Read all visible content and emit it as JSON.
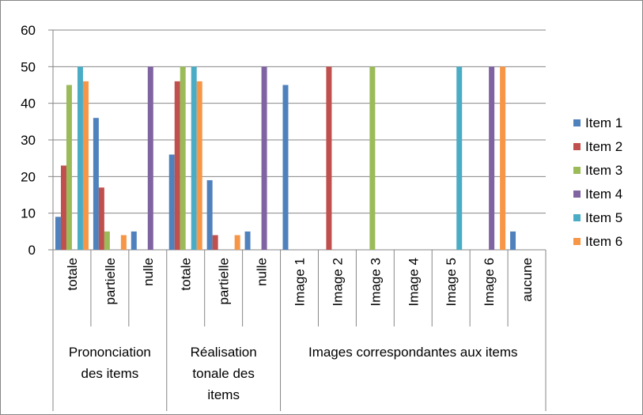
{
  "chart_data": {
    "type": "bar",
    "categories": [
      "totale",
      "partielle",
      "nulle",
      "totale",
      "partielle",
      "nulle",
      "Image 1",
      "Image 2",
      "Image 3",
      "Image 4",
      "Image 5",
      "Image 6",
      "aucune"
    ],
    "groups": [
      {
        "lines": [
          "Prononciation",
          "des items"
        ],
        "span": 3
      },
      {
        "lines": [
          "Réalisation",
          "tonale des",
          "items"
        ],
        "span": 3
      },
      {
        "lines": [
          "Images correspondantes aux items"
        ],
        "span": 7
      }
    ],
    "series": [
      {
        "name": "Item 1",
        "color": "#4F81BD",
        "values": [
          9,
          36,
          5,
          26,
          19,
          5,
          45,
          0,
          0,
          0,
          0,
          0,
          5
        ]
      },
      {
        "name": "Item 2",
        "color": "#C0504D",
        "values": [
          23,
          17,
          0,
          46,
          4,
          0,
          0,
          50,
          0,
          0,
          0,
          0,
          0
        ]
      },
      {
        "name": "Item 3",
        "color": "#9BBB59",
        "values": [
          45,
          5,
          0,
          50,
          0,
          0,
          0,
          0,
          50,
          0,
          0,
          0,
          0
        ]
      },
      {
        "name": "Item 4",
        "color": "#8064A2",
        "values": [
          0,
          0,
          50,
          0,
          0,
          50,
          0,
          0,
          0,
          0,
          0,
          50,
          0
        ]
      },
      {
        "name": "Item 5",
        "color": "#4BACC6",
        "values": [
          50,
          0,
          0,
          50,
          0,
          0,
          0,
          0,
          0,
          0,
          50,
          0,
          0
        ]
      },
      {
        "name": "Item 6",
        "color": "#F79646",
        "values": [
          46,
          4,
          0,
          46,
          4,
          0,
          0,
          0,
          0,
          0,
          0,
          50,
          0
        ]
      }
    ],
    "yticks": [
      0,
      10,
      20,
      30,
      40,
      50,
      60
    ],
    "ylim": [
      0,
      60
    ],
    "grid": true,
    "legend_position": "right"
  }
}
